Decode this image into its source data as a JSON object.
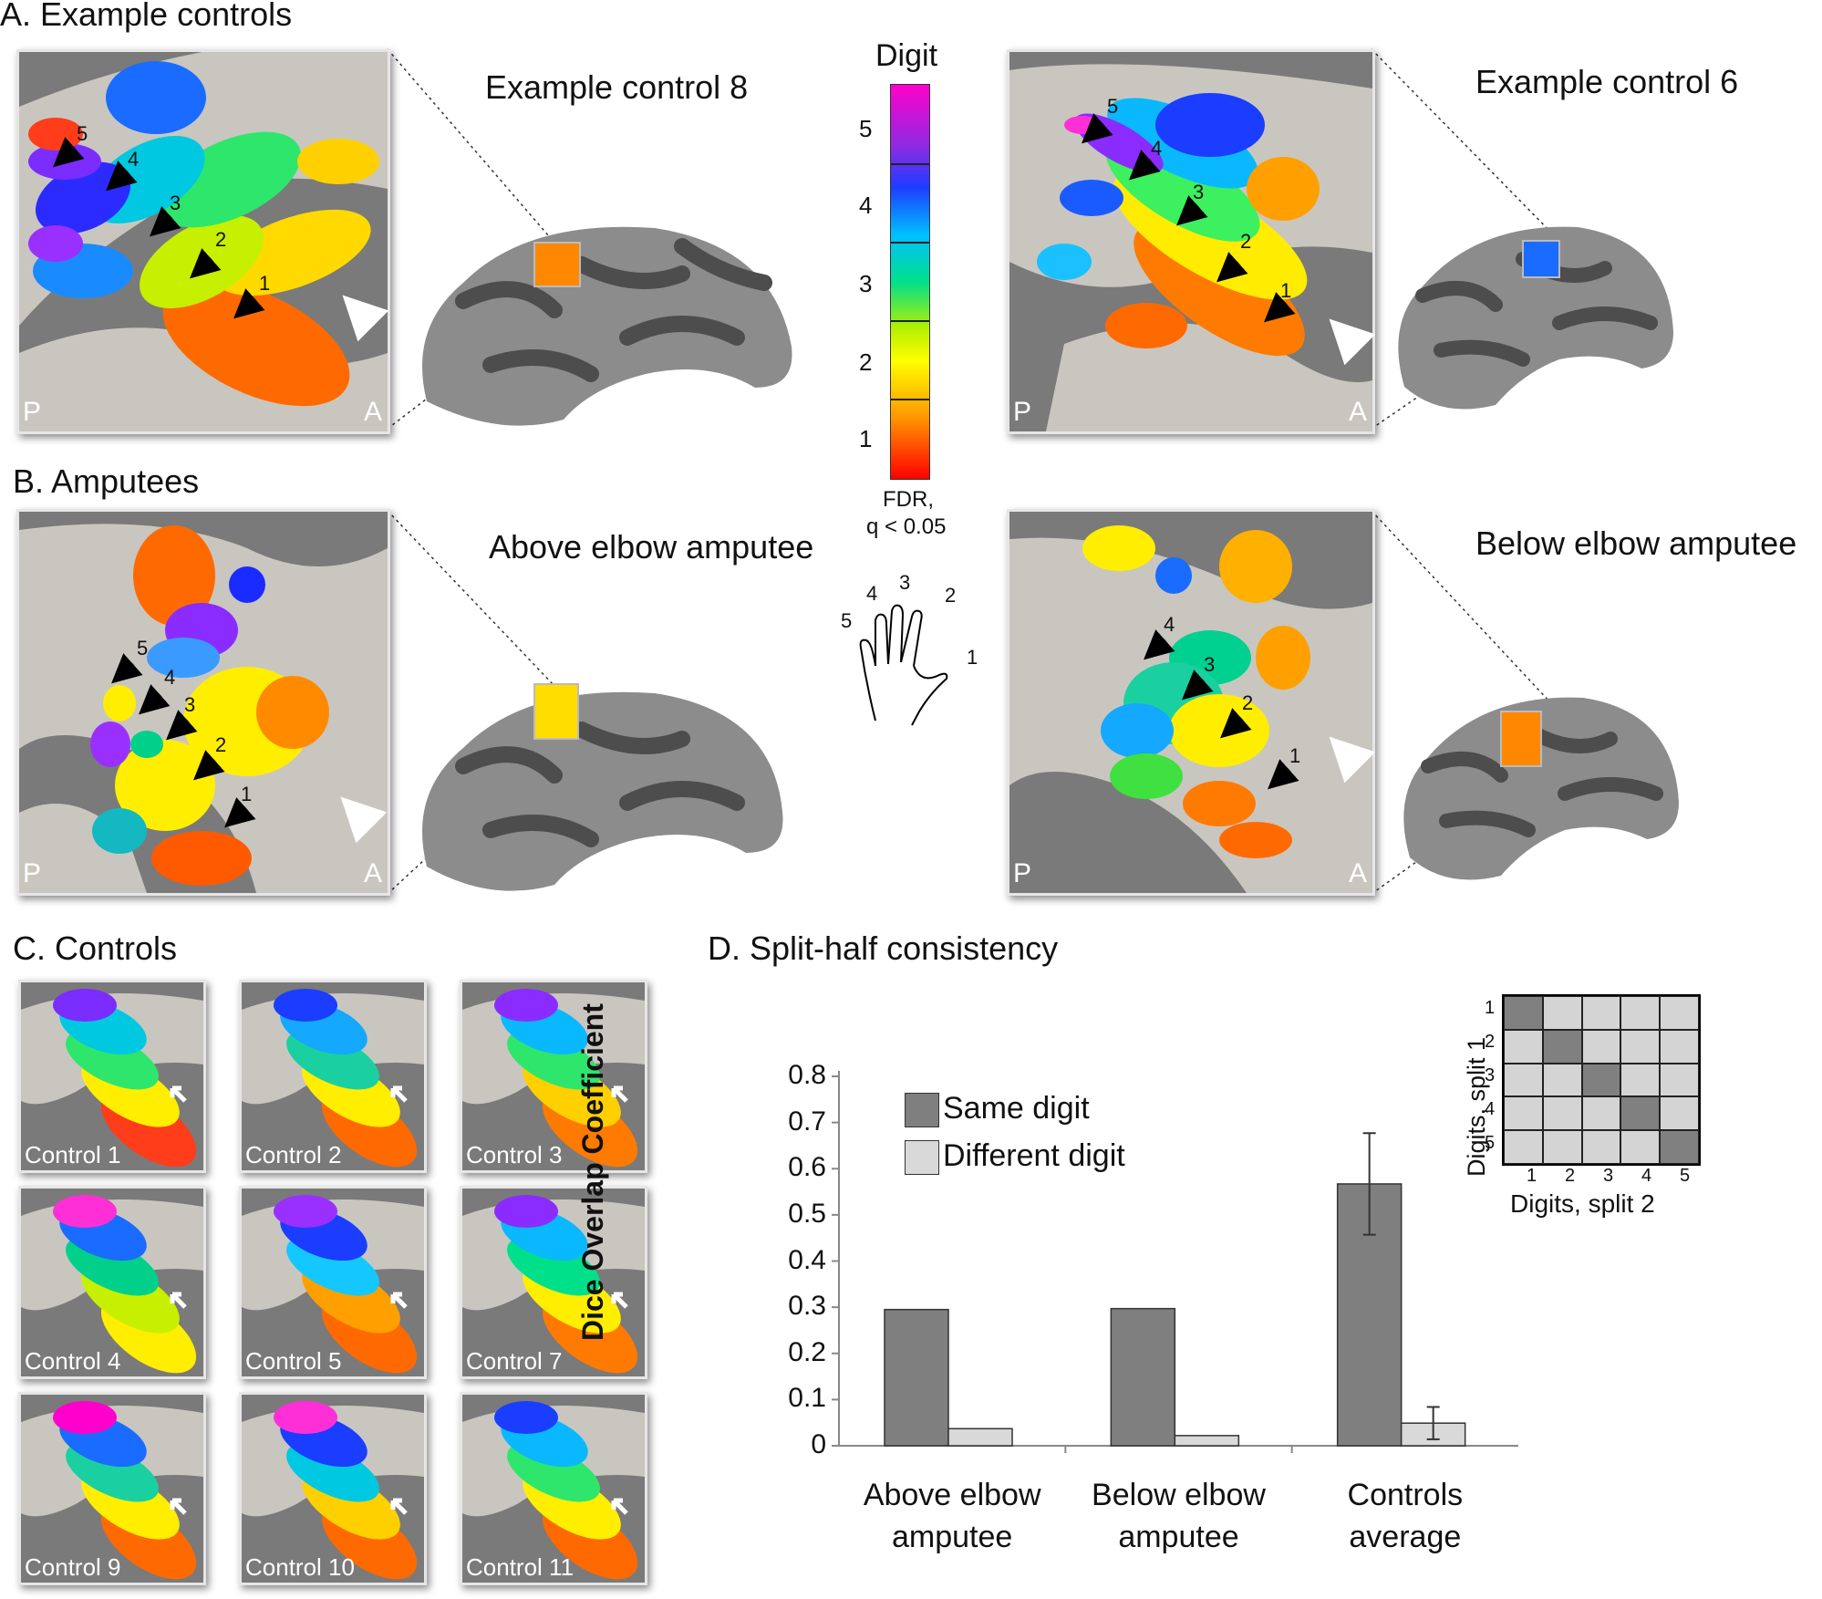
{
  "panels": {
    "a_title": "A. Example controls",
    "b_title": "B. Amputees",
    "c_title": "C. Controls",
    "d_title": "D. Split-half consistency"
  },
  "subjects": {
    "control8": "Example control 8",
    "control6": "Example control 6",
    "above": "Above elbow amputee",
    "below": "Below elbow amputee"
  },
  "orientation": {
    "posterior": "P",
    "anterior": "A"
  },
  "digit_arrows": [
    "1",
    "2",
    "3",
    "4",
    "5"
  ],
  "colorbar": {
    "title": "Digit",
    "labels": [
      "5",
      "4",
      "3",
      "2",
      "1"
    ],
    "footer_line1": "FDR,",
    "footer_line2": "q < 0.05",
    "colors": [
      "#ff00cc",
      "#8a2be2",
      "#1e3cff",
      "#00c0ff",
      "#00e08a",
      "#b6f000",
      "#ffff00",
      "#ff9a00",
      "#ff0000"
    ]
  },
  "hand": {
    "digit_labels": [
      "1",
      "2",
      "3",
      "4",
      "5"
    ]
  },
  "controls": [
    "Control 1",
    "Control 2",
    "Control 3",
    "Control 4",
    "Control 5",
    "Control 7",
    "Control 9",
    "Control 10",
    "Control 11"
  ],
  "matrix": {
    "ylabel": "Digits, split 1",
    "xlabel": "Digits, split 2",
    "row_labels": [
      "1",
      "2",
      "3",
      "4",
      "5"
    ],
    "col_labels": [
      "1",
      "2",
      "3",
      "4",
      "5"
    ],
    "diag_color": "#808080",
    "off_color": "#d4d4d4"
  },
  "chart_data": {
    "type": "bar",
    "title": "D. Split-half consistency",
    "ylabel": "Dice Overlap Coefficient",
    "xlabel": "",
    "ylim": [
      0,
      0.8
    ],
    "yticks": [
      "0",
      "0.1",
      "0.2",
      "0.3",
      "0.4",
      "0.5",
      "0.6",
      "0.7",
      "0.8"
    ],
    "categories": [
      "Above elbow amputee",
      "Below elbow amputee",
      "Controls average"
    ],
    "category_lines": [
      [
        "Above elbow",
        "amputee"
      ],
      [
        "Below elbow",
        "amputee"
      ],
      [
        "Controls",
        "average"
      ]
    ],
    "series": [
      {
        "name": "Same digit",
        "values": [
          0.295,
          0.297,
          0.567
        ],
        "error": [
          null,
          null,
          0.11
        ],
        "color": "#7f7f7f"
      },
      {
        "name": "Different digit",
        "values": [
          0.037,
          0.022,
          0.049
        ],
        "error": [
          null,
          null,
          0.035
        ],
        "color": "#d9d9d9"
      }
    ],
    "legend": "top-left"
  }
}
